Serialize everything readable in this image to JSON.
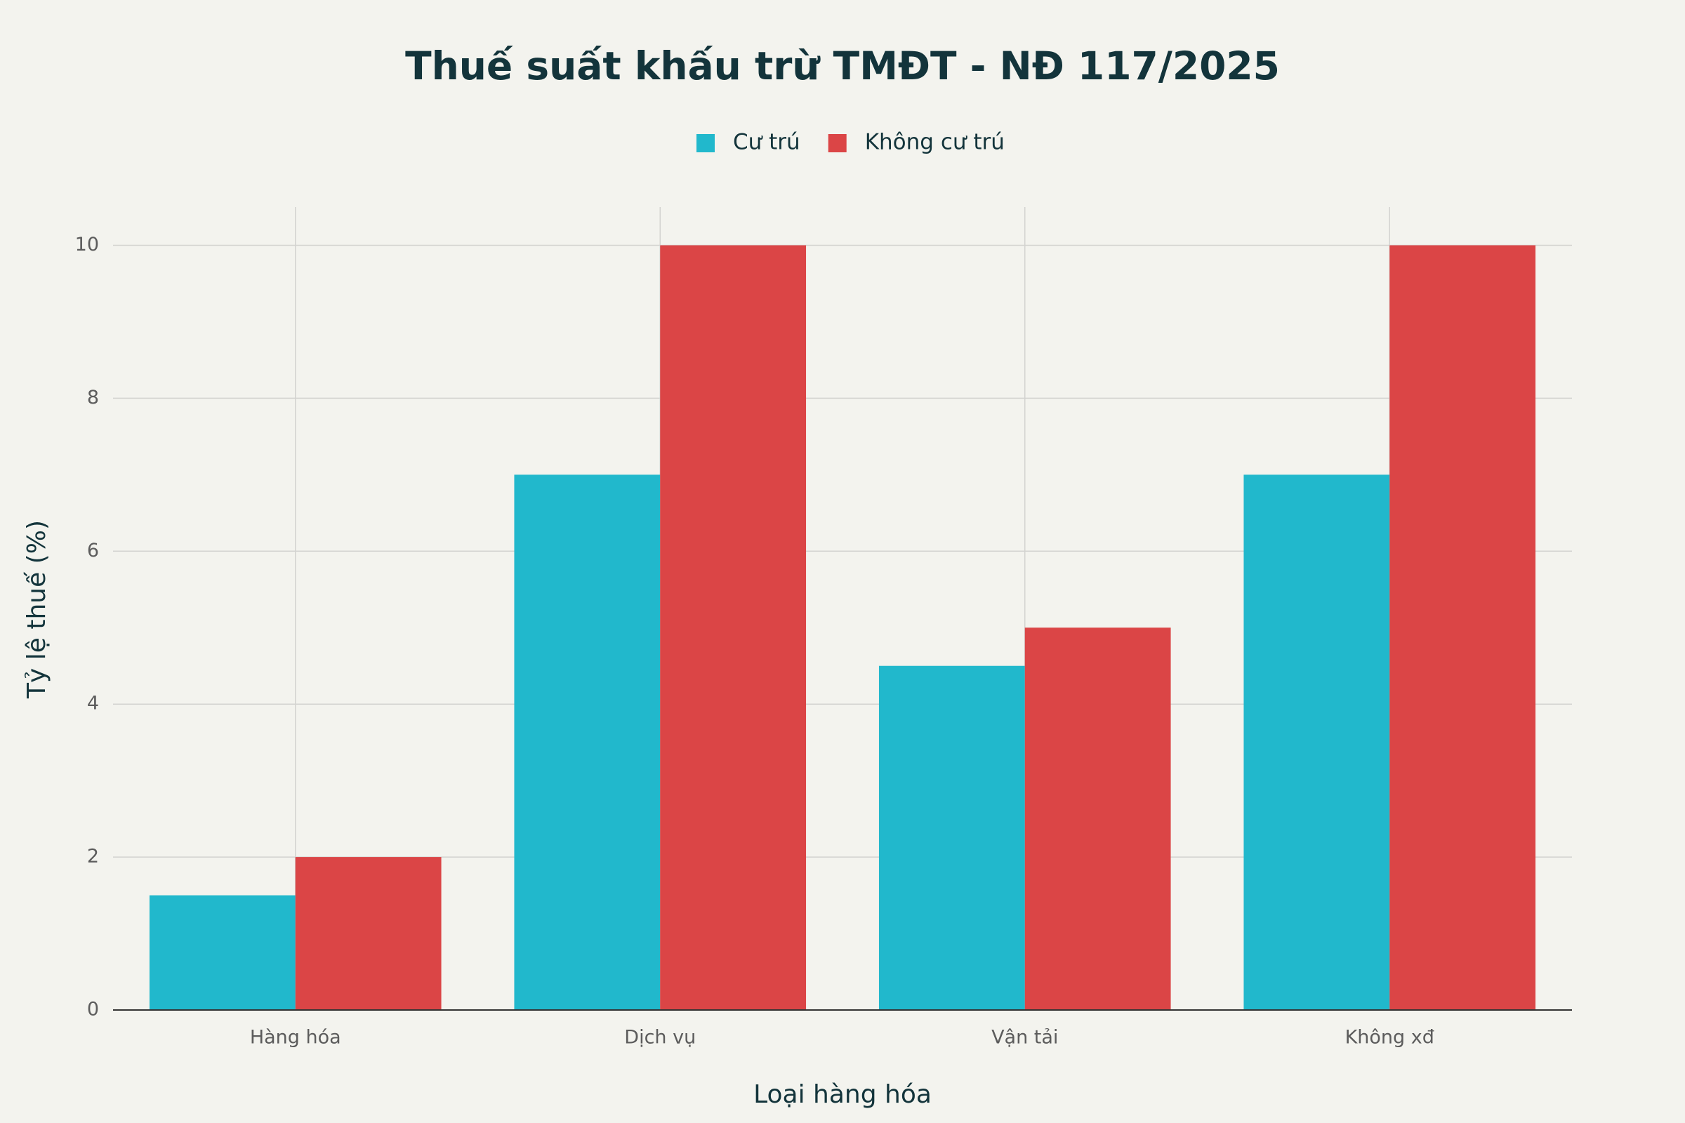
{
  "chart_data": {
    "type": "bar",
    "title": "Thuế suất khấu trừ TMĐT - NĐ 117/2025",
    "categories": [
      "Hàng hóa",
      "Dịch vụ",
      "Vận tải",
      "Không xđ"
    ],
    "series": [
      {
        "name": "Cư trú",
        "color": "#21b8cc",
        "values": [
          1.5,
          7,
          4.5,
          7
        ]
      },
      {
        "name": "Không cư trú",
        "color": "#db4546",
        "values": [
          2,
          10,
          5,
          10
        ]
      }
    ],
    "xlabel": "Loại hàng hóa",
    "ylabel": "Tỷ lệ thuế (%)",
    "ylim": [
      0,
      10.5
    ],
    "yticks": [
      0,
      2,
      4,
      6,
      8,
      10
    ],
    "grid": true
  }
}
